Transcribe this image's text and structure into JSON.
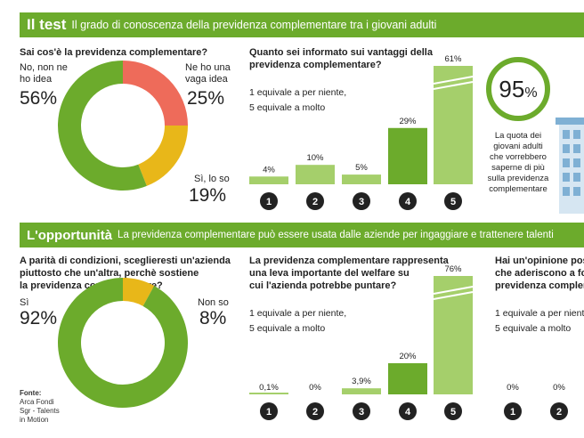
{
  "section1": {
    "title": "Il test",
    "subtitle": "Il grado di conoscenza della previdenza complementare tra i giovani adulti",
    "donut_question": "Sai cos'è la previdenza complementare?",
    "bar_question_line1": "Quanto sei informato sui vantaggi della",
    "bar_question_line2": "previdenza  complementare?",
    "scale_line1": "1 equivale a per niente,",
    "scale_line2": "5 equivale a molto",
    "badge_value": "95",
    "badge_unit": "%",
    "badge_text": [
      "La quota dei",
      "giovani adulti",
      "che vorrebbero",
      "saperne di più",
      "sulla previdenza",
      "complementare"
    ]
  },
  "section2": {
    "title": "L'opportunità",
    "subtitle": "La previdenza complementare può essere usata dalle aziende per ingaggiare e trattenere talenti",
    "donut_question": [
      "A parità di condizioni, sceglieresti un'azienda",
      "piuttosto che un'altra, perchè sostiene",
      "la previdenza complementare?"
    ],
    "bar_question": [
      "La previdenza  complementare rappresenta",
      "una leva importante del welfare su",
      "cui l'azienda potrebbe puntare?"
    ],
    "scale_line1": "1 equivale a per niente,",
    "scale_line2": "5 equivale a molto",
    "third_question": [
      "Hai un'opinione positi",
      "che aderiscono a fond",
      "previdenza compleme"
    ],
    "third_scale_line1": "1 equivale a per nient",
    "third_scale_line2": "5 equivale a molto",
    "source": [
      "Fonte:",
      "Arca Fondi",
      "Sgr - Talents",
      "in Motion"
    ]
  },
  "colors": {
    "green": "#6cab2c",
    "light_green": "#a5cf6b",
    "salmon": "#ee6b5a",
    "yellow": "#e8b719",
    "dark": "#222222"
  },
  "chart_data": [
    {
      "type": "pie",
      "title": "Sai cos'è la previdenza complementare?",
      "slices": [
        {
          "label_lines": [
            "No, non ne",
            "ho idea"
          ],
          "value": 56,
          "display": "56%",
          "color": "#6cab2c"
        },
        {
          "label_lines": [
            "Ne ho una",
            "vaga idea"
          ],
          "value": 25,
          "display": "25%",
          "color": "#ee6b5a"
        },
        {
          "label_lines": [
            "Sì, lo so"
          ],
          "value": 19,
          "display": "19%",
          "color": "#e8b719"
        }
      ]
    },
    {
      "type": "bar",
      "title": "Quanto sei informato sui vantaggi della previdenza complementare?",
      "categories": [
        "1",
        "2",
        "3",
        "4",
        "5"
      ],
      "values": [
        4,
        10,
        5,
        29,
        61
      ],
      "labels": [
        "4%",
        "10%",
        "5%",
        "29%",
        "61%"
      ],
      "ylim": [
        0,
        61
      ]
    },
    {
      "type": "pie",
      "title": "A parità di condizioni, sceglieresti un'azienda piuttosto che un'altra, perchè sostiene la previdenza complementare?",
      "slices": [
        {
          "label_lines": [
            "Sì"
          ],
          "value": 92,
          "display": "92%",
          "color": "#6cab2c"
        },
        {
          "label_lines": [
            "Non so"
          ],
          "value": 8,
          "display": "8%",
          "color": "#e8b719"
        }
      ]
    },
    {
      "type": "bar",
      "title": "La previdenza complementare rappresenta una leva importante del welfare su cui l'azienda potrebbe puntare?",
      "categories": [
        "1",
        "2",
        "3",
        "4",
        "5"
      ],
      "values": [
        0.1,
        0,
        3.9,
        20,
        76
      ],
      "labels": [
        "0,1%",
        "0%",
        "3,9%",
        "20%",
        "76%"
      ],
      "ylim": [
        0,
        76
      ]
    },
    {
      "type": "bar",
      "title": "Hai un'opinione positi... che aderiscono a fond... previdenza compleme...",
      "categories": [
        "1",
        "2"
      ],
      "values": [
        0,
        0
      ],
      "labels": [
        "0%",
        "0%"
      ]
    }
  ]
}
